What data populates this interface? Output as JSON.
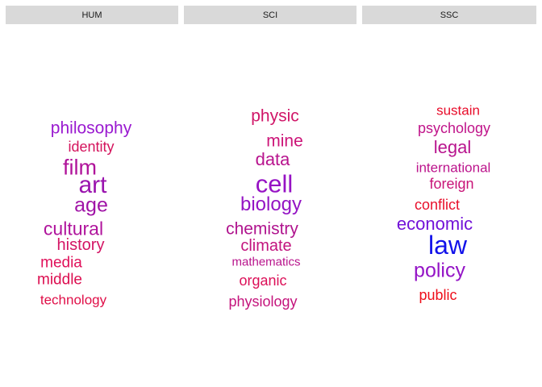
{
  "chart_data": {
    "type": "wordcloud",
    "panels": [
      {
        "label": "HUM",
        "words": [
          {
            "text": "philosophy",
            "color": "#9a1ad0"
          },
          {
            "text": "identity",
            "color": "#d4135c"
          },
          {
            "text": "film",
            "color": "#b0139a"
          },
          {
            "text": "art",
            "color": "#9a13ae"
          },
          {
            "text": "age",
            "color": "#a013a6"
          },
          {
            "text": "cultural",
            "color": "#b0149c"
          },
          {
            "text": "history",
            "color": "#d41464"
          },
          {
            "text": "media",
            "color": "#e0105a"
          },
          {
            "text": "middle",
            "color": "#dc0e50"
          },
          {
            "text": "technology",
            "color": "#e00f48"
          }
        ]
      },
      {
        "label": "SCI",
        "words": [
          {
            "text": "physic",
            "color": "#d01668"
          },
          {
            "text": "mine",
            "color": "#cc1478"
          },
          {
            "text": "data",
            "color": "#b8148e"
          },
          {
            "text": "cell",
            "color": "#9612c4"
          },
          {
            "text": "biology",
            "color": "#9414c4"
          },
          {
            "text": "chemistry",
            "color": "#b0148e"
          },
          {
            "text": "climate",
            "color": "#c2147e"
          },
          {
            "text": "mathematics",
            "color": "#b8148c"
          },
          {
            "text": "organic",
            "color": "#dc1058"
          },
          {
            "text": "physiology",
            "color": "#c4147c"
          }
        ]
      },
      {
        "label": "SSC",
        "words": [
          {
            "text": "sustain",
            "color": "#e80c2a"
          },
          {
            "text": "psychology",
            "color": "#c0148a"
          },
          {
            "text": "legal",
            "color": "#b8148e"
          },
          {
            "text": "international",
            "color": "#bc148c"
          },
          {
            "text": "foreign",
            "color": "#c81478"
          },
          {
            "text": "conflict",
            "color": "#e8102c"
          },
          {
            "text": "economic",
            "color": "#7212d8"
          },
          {
            "text": "law",
            "color": "#1212ea"
          },
          {
            "text": "policy",
            "color": "#9414c6"
          },
          {
            "text": "public",
            "color": "#ee0e1a"
          }
        ]
      }
    ]
  }
}
